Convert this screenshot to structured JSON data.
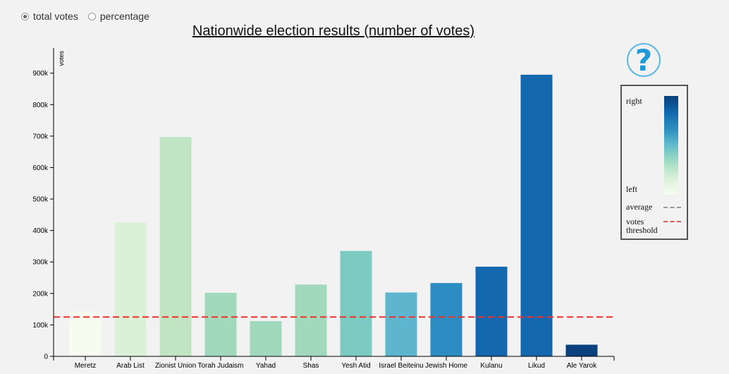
{
  "controls": {
    "options": [
      {
        "label": "total votes",
        "checked": true
      },
      {
        "label": "percentage",
        "checked": false
      }
    ]
  },
  "help": {
    "glyph": "?"
  },
  "legend": {
    "right_label": "right",
    "left_label": "left",
    "average_label": "average",
    "threshold_label_1": "votes",
    "threshold_label_2": "threshold"
  },
  "chart_data": {
    "type": "bar",
    "title": "Nationwide election results (number of votes)",
    "xlabel": "",
    "ylabel": "votes",
    "ylim": [
      0,
      980000
    ],
    "yticks": [
      0,
      100000,
      200000,
      300000,
      400000,
      500000,
      600000,
      700000,
      800000,
      900000
    ],
    "ytick_labels": [
      "0",
      "100k",
      "200k",
      "300k",
      "400k",
      "500k",
      "600k",
      "700k",
      "800k",
      "900k"
    ],
    "categories": [
      "Meretz",
      "Arab List",
      "Zionist Union",
      "Torah Judaism",
      "Yahad",
      "Shas",
      "Yesh Atid",
      "Israel Beiteinu",
      "Jewish Home",
      "Kulanu",
      "Likud",
      "Ale Yarok"
    ],
    "values": [
      143000,
      425000,
      697000,
      202000,
      112000,
      228000,
      335000,
      203000,
      233000,
      285000,
      895000,
      37000
    ],
    "colors": [
      "#f6fcf0",
      "#daf1d8",
      "#c1e5c2",
      "#a0d9bc",
      "#a0d9bc",
      "#a0d9bc",
      "#7ccbc3",
      "#5db5ce",
      "#2d8cc1",
      "#1468ad",
      "#1468ad",
      "#0a417e"
    ],
    "threshold": 125000,
    "threshold_color": "#e8322c",
    "legend_position": "right",
    "grid": false
  }
}
